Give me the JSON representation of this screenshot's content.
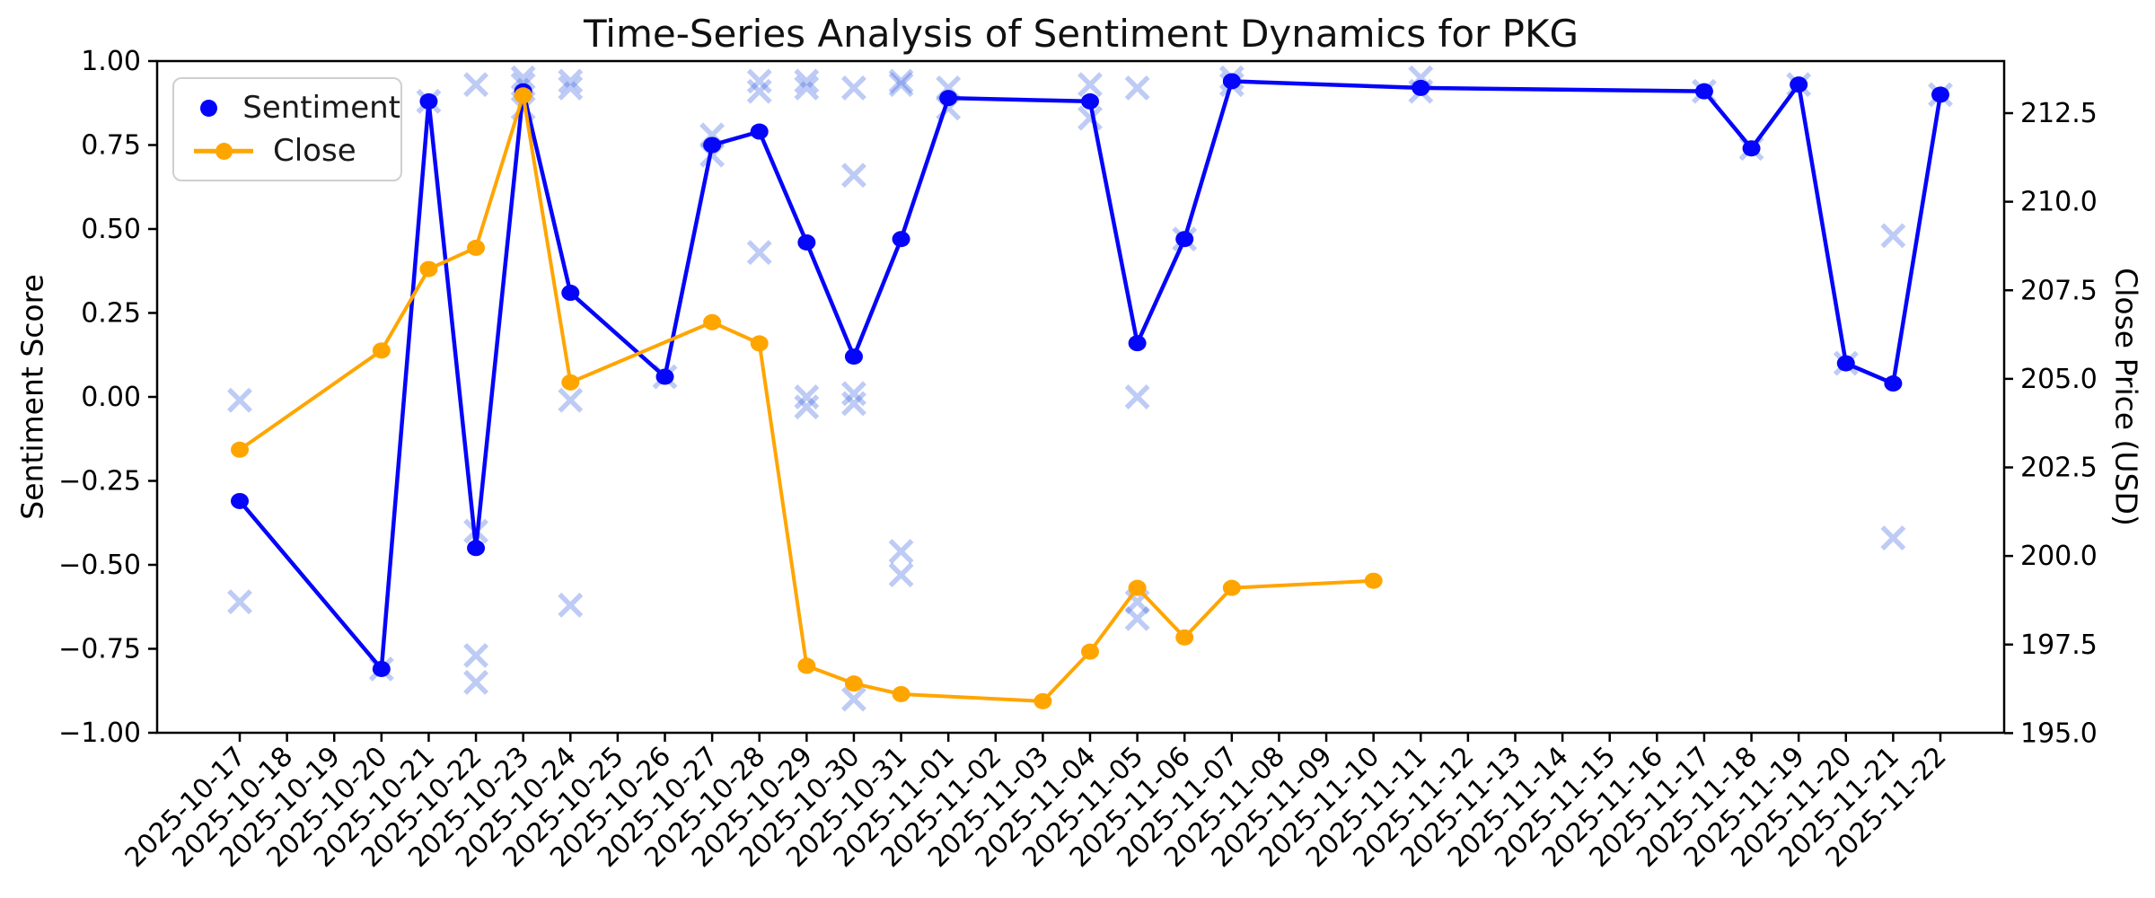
{
  "title": "Time-Series Analysis of Sentiment Dynamics for PKG",
  "left_axis": {
    "label": "Sentiment Score",
    "tick_labels": [
      "1.00",
      "0.75",
      "0.50",
      "0.25",
      "0.00",
      "−0.25",
      "−0.50",
      "−0.75",
      "−1.00"
    ],
    "tick_values": [
      1.0,
      0.75,
      0.5,
      0.25,
      0.0,
      -0.25,
      -0.5,
      -0.75,
      -1.0
    ]
  },
  "right_axis": {
    "label": "Close Price (USD)",
    "tick_labels": [
      "212.5",
      "210.0",
      "207.5",
      "205.0",
      "202.5",
      "200.0",
      "197.5",
      "195.0"
    ],
    "tick_values": [
      212.5,
      210.0,
      207.5,
      205.0,
      202.5,
      200.0,
      197.5,
      195.0
    ]
  },
  "x_axis": {
    "tick_labels": [
      "2025-10-17",
      "2025-10-18",
      "2025-10-19",
      "2025-10-20",
      "2025-10-21",
      "2025-10-22",
      "2025-10-23",
      "2025-10-24",
      "2025-10-25",
      "2025-10-26",
      "2025-10-27",
      "2025-10-28",
      "2025-10-29",
      "2025-10-30",
      "2025-10-31",
      "2025-11-01",
      "2025-11-02",
      "2025-11-03",
      "2025-11-04",
      "2025-11-05",
      "2025-11-06",
      "2025-11-07",
      "2025-11-08",
      "2025-11-09",
      "2025-11-10",
      "2025-11-11",
      "2025-11-12",
      "2025-11-13",
      "2025-11-14",
      "2025-11-15",
      "2025-11-16",
      "2025-11-17",
      "2025-11-18",
      "2025-11-19",
      "2025-11-20",
      "2025-11-21",
      "2025-11-22"
    ]
  },
  "legend": {
    "items": [
      {
        "label": "Sentiment",
        "handle": "dot",
        "color": "#0505fa"
      },
      {
        "label": "Close",
        "handle": "line-dot",
        "color": "#ffa500"
      }
    ]
  },
  "colors": {
    "sentiment_line": "#0505fa",
    "close_line": "#ffa500",
    "scatter_x": "#4169e1",
    "scatter_opacity": 0.35,
    "spine": "#000000",
    "title_text": "#111111"
  },
  "chart_data": {
    "type": "line",
    "title": "Time-Series Analysis of Sentiment Dynamics for PKG",
    "xlabel": "",
    "ylabel_left": "Sentiment Score",
    "ylabel_right": "Close Price (USD)",
    "x_categories": [
      "2025-10-17",
      "2025-10-18",
      "2025-10-19",
      "2025-10-20",
      "2025-10-21",
      "2025-10-22",
      "2025-10-23",
      "2025-10-24",
      "2025-10-25",
      "2025-10-26",
      "2025-10-27",
      "2025-10-28",
      "2025-10-29",
      "2025-10-30",
      "2025-10-31",
      "2025-11-01",
      "2025-11-02",
      "2025-11-03",
      "2025-11-04",
      "2025-11-05",
      "2025-11-06",
      "2025-11-07",
      "2025-11-08",
      "2025-11-09",
      "2025-11-10",
      "2025-11-11",
      "2025-11-12",
      "2025-11-13",
      "2025-11-14",
      "2025-11-15",
      "2025-11-16",
      "2025-11-17",
      "2025-11-18",
      "2025-11-19",
      "2025-11-20",
      "2025-11-21",
      "2025-11-22"
    ],
    "left_ylim": [
      -1.0,
      1.0
    ],
    "right_ylim": [
      194.9,
      213.95
    ],
    "grid": false,
    "legend_position": "upper left",
    "series": [
      {
        "name": "Sentiment",
        "axis": "left",
        "style": "line+marker",
        "color": "#0505fa",
        "points": [
          [
            "2025-10-17",
            -0.31
          ],
          [
            "2025-10-20",
            -0.81
          ],
          [
            "2025-10-21",
            0.88
          ],
          [
            "2025-10-22",
            -0.45
          ],
          [
            "2025-10-23",
            0.91
          ],
          [
            "2025-10-24",
            0.31
          ],
          [
            "2025-10-26",
            0.06
          ],
          [
            "2025-10-27",
            0.75
          ],
          [
            "2025-10-28",
            0.79
          ],
          [
            "2025-10-29",
            0.46
          ],
          [
            "2025-10-30",
            0.12
          ],
          [
            "2025-10-31",
            0.47
          ],
          [
            "2025-11-01",
            0.89
          ],
          [
            "2025-11-04",
            0.88
          ],
          [
            "2025-11-05",
            0.16
          ],
          [
            "2025-11-06",
            0.47
          ],
          [
            "2025-11-07",
            0.94
          ],
          [
            "2025-11-11",
            0.92
          ],
          [
            "2025-11-17",
            0.91
          ],
          [
            "2025-11-18",
            0.74
          ],
          [
            "2025-11-19",
            0.93
          ],
          [
            "2025-11-20",
            0.1
          ],
          [
            "2025-11-21",
            0.04
          ],
          [
            "2025-11-22",
            0.9
          ]
        ]
      },
      {
        "name": "Close",
        "axis": "right",
        "style": "line+marker",
        "color": "#ffa500",
        "points": [
          [
            "2025-10-17",
            203.0
          ],
          [
            "2025-10-20",
            205.8
          ],
          [
            "2025-10-21",
            208.1
          ],
          [
            "2025-10-22",
            208.7
          ],
          [
            "2025-10-23",
            213.0
          ],
          [
            "2025-10-24",
            204.9
          ],
          [
            "2025-10-27",
            206.6
          ],
          [
            "2025-10-28",
            206.0
          ],
          [
            "2025-10-29",
            196.9
          ],
          [
            "2025-10-30",
            196.4
          ],
          [
            "2025-10-31",
            196.1
          ],
          [
            "2025-11-03",
            195.9
          ],
          [
            "2025-11-04",
            197.3
          ],
          [
            "2025-11-05",
            199.1
          ],
          [
            "2025-11-06",
            197.7
          ],
          [
            "2025-11-07",
            199.1
          ],
          [
            "2025-11-10",
            199.3
          ]
        ]
      },
      {
        "name": "individual-sentiment-x-markers",
        "axis": "left",
        "style": "scatter-x",
        "color": "#4169e1",
        "opacity": 0.35,
        "points": [
          [
            "2025-10-17",
            -0.01
          ],
          [
            "2025-10-17",
            -0.61
          ],
          [
            "2025-10-20",
            -0.81
          ],
          [
            "2025-10-21",
            0.88
          ],
          [
            "2025-10-22",
            0.93
          ],
          [
            "2025-10-22",
            -0.4
          ],
          [
            "2025-10-22",
            -0.77
          ],
          [
            "2025-10-22",
            -0.85
          ],
          [
            "2025-10-23",
            0.95
          ],
          [
            "2025-10-23",
            0.93
          ],
          [
            "2025-10-23",
            0.86
          ],
          [
            "2025-10-24",
            0.94
          ],
          [
            "2025-10-24",
            0.92
          ],
          [
            "2025-10-24",
            -0.01
          ],
          [
            "2025-10-24",
            -0.62
          ],
          [
            "2025-10-26",
            0.06
          ],
          [
            "2025-10-27",
            0.78
          ],
          [
            "2025-10-27",
            0.72
          ],
          [
            "2025-10-28",
            0.94
          ],
          [
            "2025-10-28",
            0.91
          ],
          [
            "2025-10-28",
            0.43
          ],
          [
            "2025-10-29",
            0.94
          ],
          [
            "2025-10-29",
            0.92
          ],
          [
            "2025-10-29",
            0.0
          ],
          [
            "2025-10-29",
            -0.03
          ],
          [
            "2025-10-30",
            0.92
          ],
          [
            "2025-10-30",
            0.66
          ],
          [
            "2025-10-30",
            0.01
          ],
          [
            "2025-10-30",
            -0.02
          ],
          [
            "2025-10-30",
            -0.9
          ],
          [
            "2025-10-31",
            0.94
          ],
          [
            "2025-10-31",
            0.93
          ],
          [
            "2025-10-31",
            -0.46
          ],
          [
            "2025-10-31",
            -0.53
          ],
          [
            "2025-11-01",
            0.92
          ],
          [
            "2025-11-01",
            0.86
          ],
          [
            "2025-11-04",
            0.93
          ],
          [
            "2025-11-04",
            0.83
          ],
          [
            "2025-11-05",
            0.92
          ],
          [
            "2025-11-05",
            0.0
          ],
          [
            "2025-11-05",
            -0.61
          ],
          [
            "2025-11-05",
            -0.66
          ],
          [
            "2025-11-06",
            0.47
          ],
          [
            "2025-11-07",
            0.95
          ],
          [
            "2025-11-07",
            0.93
          ],
          [
            "2025-11-11",
            0.95
          ],
          [
            "2025-11-11",
            0.91
          ],
          [
            "2025-11-17",
            0.91
          ],
          [
            "2025-11-18",
            0.74
          ],
          [
            "2025-11-19",
            0.93
          ],
          [
            "2025-11-20",
            0.1
          ],
          [
            "2025-11-21",
            0.48
          ],
          [
            "2025-11-21",
            -0.42
          ],
          [
            "2025-11-22",
            0.9
          ]
        ]
      }
    ]
  }
}
